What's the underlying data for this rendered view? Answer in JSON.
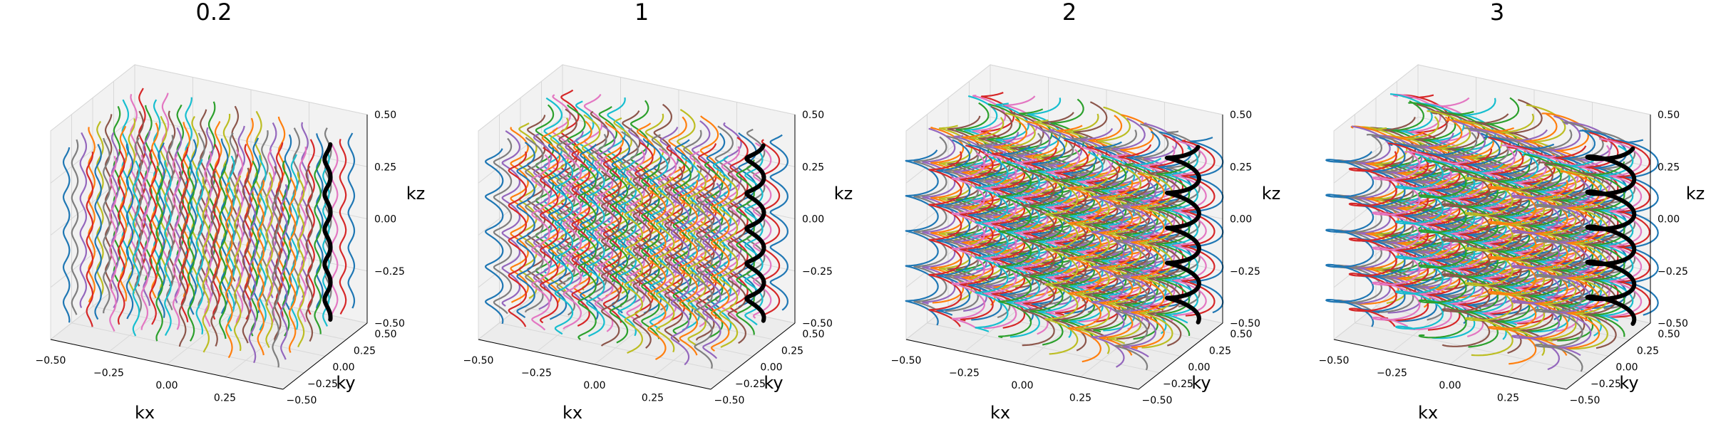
{
  "figure": {
    "panel_count": 4
  },
  "chart_data": [
    {
      "type": "line3d",
      "title": "0.2",
      "xlabel": "kx",
      "ylabel": "ky",
      "zlabel": "kz",
      "xlim": [
        -0.5,
        0.5
      ],
      "ylim": [
        -0.5,
        0.5
      ],
      "zlim": [
        -0.5,
        0.5
      ],
      "x_ticks": [
        "−0.50",
        "−0.25",
        "0.00",
        "0.25"
      ],
      "y_ticks": [
        "−0.50",
        "−0.25",
        "0.00",
        "0.25",
        "0.50"
      ],
      "z_ticks": [
        "−0.50",
        "−0.25",
        "0.00",
        "0.25",
        "0.50"
      ],
      "trajectory": {
        "shape": "helix",
        "helix_radius": 0.012,
        "turns": 5,
        "z_range": [
          -0.42,
          0.42
        ]
      },
      "grid": {
        "x_centers": [
          -0.45,
          -0.35,
          -0.25,
          -0.15,
          -0.05,
          0.05,
          0.15,
          0.25,
          0.35,
          0.45
        ],
        "y_centers": [
          -0.45,
          -0.35,
          -0.25,
          -0.15,
          -0.05,
          0.05,
          0.15,
          0.25,
          0.35,
          0.45
        ]
      },
      "highlight": {
        "x": 0.42,
        "y": 0.25,
        "color": "#000000"
      },
      "grid_lines": true
    },
    {
      "type": "line3d",
      "title": "1",
      "xlabel": "kx",
      "ylabel": "ky",
      "zlabel": "kz",
      "xlim": [
        -0.5,
        0.5
      ],
      "ylim": [
        -0.5,
        0.5
      ],
      "zlim": [
        -0.5,
        0.5
      ],
      "x_ticks": [
        "−0.50",
        "−0.25",
        "0.00",
        "0.25"
      ],
      "y_ticks": [
        "−0.50",
        "−0.25",
        "0.00",
        "0.25",
        "0.50"
      ],
      "z_ticks": [
        "−0.50",
        "−0.25",
        "0.00",
        "0.25",
        "0.50"
      ],
      "trajectory": {
        "shape": "helix",
        "helix_radius": 0.035,
        "turns": 5,
        "z_range": [
          -0.42,
          0.42
        ]
      },
      "grid": {
        "x_centers": [
          -0.45,
          -0.35,
          -0.25,
          -0.15,
          -0.05,
          0.05,
          0.15,
          0.25,
          0.35,
          0.45
        ],
        "y_centers": [
          -0.45,
          -0.35,
          -0.25,
          -0.15,
          -0.05,
          0.05,
          0.15,
          0.25,
          0.35,
          0.45
        ]
      },
      "highlight": {
        "x": 0.42,
        "y": 0.25,
        "color": "#000000"
      },
      "grid_lines": true
    },
    {
      "type": "line3d",
      "title": "2",
      "xlabel": "kx",
      "ylabel": "ky",
      "zlabel": "kz",
      "xlim": [
        -0.5,
        0.5
      ],
      "ylim": [
        -0.5,
        0.5
      ],
      "zlim": [
        -0.5,
        0.5
      ],
      "x_ticks": [
        "−0.50",
        "−0.25",
        "0.00",
        "0.25"
      ],
      "y_ticks": [
        "−0.50",
        "−0.25",
        "0.00",
        "0.25",
        "0.50"
      ],
      "z_ticks": [
        "−0.50",
        "−0.25",
        "0.00",
        "0.25",
        "0.50"
      ],
      "trajectory": {
        "shape": "helix",
        "helix_radius": 0.065,
        "turns": 5,
        "z_range": [
          -0.42,
          0.42
        ]
      },
      "grid": {
        "x_centers": [
          -0.45,
          -0.35,
          -0.25,
          -0.15,
          -0.05,
          0.05,
          0.15,
          0.25,
          0.35,
          0.45
        ],
        "y_centers": [
          -0.45,
          -0.35,
          -0.25,
          -0.15,
          -0.05,
          0.05,
          0.15,
          0.25,
          0.35,
          0.45
        ]
      },
      "highlight": {
        "x": 0.42,
        "y": 0.25,
        "color": "#000000"
      },
      "grid_lines": true
    },
    {
      "type": "line3d",
      "title": "3",
      "xlabel": "kx",
      "ylabel": "ky",
      "zlabel": "kz",
      "xlim": [
        -0.5,
        0.5
      ],
      "ylim": [
        -0.5,
        0.5
      ],
      "zlim": [
        -0.5,
        0.5
      ],
      "x_ticks": [
        "−0.50",
        "−0.25",
        "0.00",
        "0.25"
      ],
      "y_ticks": [
        "−0.50",
        "−0.25",
        "0.00",
        "0.25",
        "0.50"
      ],
      "z_ticks": [
        "−0.50",
        "−0.25",
        "0.00",
        "0.25",
        "0.50"
      ],
      "trajectory": {
        "shape": "helix",
        "helix_radius": 0.095,
        "turns": 5,
        "z_range": [
          -0.42,
          0.42
        ]
      },
      "grid": {
        "x_centers": [
          -0.45,
          -0.35,
          -0.25,
          -0.15,
          -0.05,
          0.05,
          0.15,
          0.25,
          0.35,
          0.45
        ],
        "y_centers": [
          -0.45,
          -0.35,
          -0.25,
          -0.15,
          -0.05,
          0.05,
          0.15,
          0.25,
          0.35,
          0.45
        ]
      },
      "highlight": {
        "x": 0.42,
        "y": 0.25,
        "color": "#000000"
      },
      "grid_lines": true
    }
  ],
  "palette": [
    "#1f77b4",
    "#ff7f0e",
    "#2ca02c",
    "#d62728",
    "#9467bd",
    "#8c564b",
    "#e377c2",
    "#7f7f7f",
    "#bcbd22",
    "#17becf"
  ]
}
